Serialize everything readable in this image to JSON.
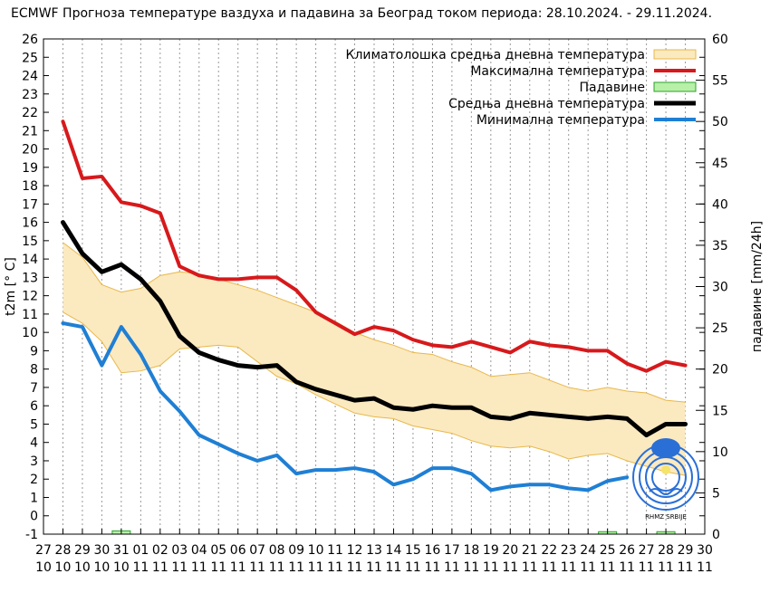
{
  "chart_data": {
    "type": "line",
    "title": "ECMWF Прогноза температуре ваздуха и падавина за Београд током периода: 28.10.2024. - 29.11.2024.",
    "ylabel": "t2m [° C]",
    "y2label": "падавине [mm/24h]",
    "ylim": [
      -1,
      26
    ],
    "y2lim": [
      0,
      60
    ],
    "y_ticks": [
      "-1",
      "0",
      "1",
      "2",
      "3",
      "4",
      "5",
      "6",
      "7",
      "8",
      "9",
      "10",
      "11",
      "12",
      "13",
      "14",
      "15",
      "16",
      "17",
      "18",
      "19",
      "20",
      "21",
      "22",
      "23",
      "24",
      "25",
      "26"
    ],
    "y2_ticks": [
      "0",
      "5",
      "10",
      "15",
      "20",
      "25",
      "30",
      "35",
      "40",
      "45",
      "50",
      "55",
      "60"
    ],
    "x_ticks": [
      {
        "day": "27",
        "month": "10"
      },
      {
        "day": "28",
        "month": "10"
      },
      {
        "day": "29",
        "month": "10"
      },
      {
        "day": "30",
        "month": "10"
      },
      {
        "day": "31",
        "month": "10"
      },
      {
        "day": "01",
        "month": "11"
      },
      {
        "day": "02",
        "month": "11"
      },
      {
        "day": "03",
        "month": "11"
      },
      {
        "day": "04",
        "month": "11"
      },
      {
        "day": "05",
        "month": "11"
      },
      {
        "day": "06",
        "month": "11"
      },
      {
        "day": "07",
        "month": "11"
      },
      {
        "day": "08",
        "month": "11"
      },
      {
        "day": "09",
        "month": "11"
      },
      {
        "day": "10",
        "month": "11"
      },
      {
        "day": "11",
        "month": "11"
      },
      {
        "day": "12",
        "month": "11"
      },
      {
        "day": "13",
        "month": "11"
      },
      {
        "day": "14",
        "month": "11"
      },
      {
        "day": "15",
        "month": "11"
      },
      {
        "day": "16",
        "month": "11"
      },
      {
        "day": "17",
        "month": "11"
      },
      {
        "day": "18",
        "month": "11"
      },
      {
        "day": "19",
        "month": "11"
      },
      {
        "day": "20",
        "month": "11"
      },
      {
        "day": "21",
        "month": "11"
      },
      {
        "day": "22",
        "month": "11"
      },
      {
        "day": "23",
        "month": "11"
      },
      {
        "day": "24",
        "month": "11"
      },
      {
        "day": "25",
        "month": "11"
      },
      {
        "day": "26",
        "month": "11"
      },
      {
        "day": "27",
        "month": "11"
      },
      {
        "day": "28",
        "month": "11"
      },
      {
        "day": "29",
        "month": "11"
      },
      {
        "day": "30",
        "month": "11"
      }
    ],
    "grid": "vertical dotted",
    "legend_position": "top-right",
    "legend": [
      {
        "label": "Климатолошка средња дневна температура",
        "kind": "band",
        "color": "#fbe9c0",
        "border": "#e8b84a"
      },
      {
        "label": "Максимална температура",
        "kind": "line",
        "color": "#d7191c"
      },
      {
        "label": "Падавине",
        "kind": "band",
        "color": "#b8f0a8",
        "border": "#2ca02c"
      },
      {
        "label": "Средња дневна температура",
        "kind": "line",
        "color": "#000000"
      },
      {
        "label": "Минимална температура",
        "kind": "line",
        "color": "#1f7fd4"
      }
    ],
    "x": [
      28,
      29,
      30,
      31,
      32,
      33,
      34,
      35,
      36,
      37,
      38,
      39,
      40,
      41,
      42,
      43,
      44,
      45,
      46,
      47,
      48,
      49,
      50,
      51,
      52,
      53,
      54,
      55,
      56,
      57,
      58,
      59,
      60
    ],
    "series": [
      {
        "name": "Максимална температура",
        "color": "#d7191c",
        "width": 4,
        "values": [
          21.5,
          18.4,
          18.5,
          17.1,
          16.9,
          16.5,
          13.6,
          13.1,
          12.9,
          12.9,
          13.0,
          13.0,
          12.3,
          11.1,
          10.5,
          9.9,
          10.3,
          10.1,
          9.6,
          9.3,
          9.2,
          9.5,
          9.2,
          8.9,
          9.5,
          9.3,
          9.2,
          9.0,
          9.0,
          8.3,
          7.9,
          8.4,
          8.2
        ]
      },
      {
        "name": "Средња дневна температура",
        "color": "#000000",
        "width": 5,
        "values": [
          16.0,
          14.3,
          13.3,
          13.7,
          12.9,
          11.7,
          9.8,
          8.9,
          8.5,
          8.2,
          8.1,
          8.2,
          7.3,
          6.9,
          6.6,
          6.3,
          6.4,
          5.9,
          5.8,
          6.0,
          5.9,
          5.9,
          5.4,
          5.3,
          5.6,
          5.5,
          5.4,
          5.3,
          5.4,
          5.3,
          4.4,
          5.0,
          5.0
        ]
      },
      {
        "name": "Минимална температура",
        "color": "#1f7fd4",
        "width": 4,
        "values": [
          10.5,
          10.3,
          8.2,
          10.3,
          8.8,
          6.8,
          5.7,
          4.4,
          3.9,
          3.4,
          3.0,
          3.3,
          2.3,
          2.5,
          2.5,
          2.6,
          2.4,
          1.7,
          2.0,
          2.6,
          2.6,
          2.3,
          1.4,
          1.6,
          1.7,
          1.7,
          1.5,
          1.4,
          1.9,
          2.1,
          null,
          null,
          null
        ]
      }
    ],
    "climate_band": {
      "name": "Климатолошка средња дневна температура",
      "upper": [
        14.9,
        14.1,
        12.6,
        12.2,
        12.4,
        13.1,
        13.3,
        13.2,
        12.9,
        12.6,
        12.3,
        11.9,
        11.5,
        11.1,
        10.6,
        10.0,
        9.6,
        9.3,
        8.9,
        8.8,
        8.4,
        8.1,
        7.6,
        7.7,
        7.8,
        7.4,
        7.0,
        6.8,
        7.0,
        6.8,
        6.7,
        6.3,
        6.2
      ],
      "lower": [
        11.1,
        10.5,
        9.5,
        7.8,
        7.9,
        8.2,
        9.1,
        9.2,
        9.3,
        9.2,
        8.4,
        7.6,
        7.2,
        6.6,
        6.1,
        5.6,
        5.4,
        5.3,
        4.9,
        4.7,
        4.5,
        4.1,
        3.8,
        3.7,
        3.8,
        3.5,
        3.1,
        3.3,
        3.4,
        3.0,
        2.7,
        2.4,
        2.2
      ]
    },
    "precipitation_mm": [
      0,
      0,
      0,
      0.4,
      0,
      0,
      0,
      0,
      0,
      0,
      0,
      0,
      0,
      0,
      0,
      0,
      0,
      0,
      0,
      0,
      0,
      0,
      0,
      0,
      0,
      0,
      0,
      0,
      0.3,
      0,
      0,
      0.3,
      0
    ],
    "logo": {
      "text": "RHMZ SRBIJE",
      "color": "#2a6fd6"
    }
  }
}
